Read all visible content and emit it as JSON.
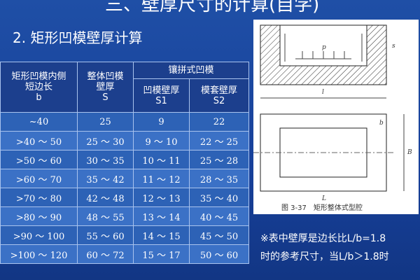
{
  "slide": {
    "title": "三、壁厚尺寸的计算(自学)",
    "heading": "2. 矩形凹模壁厚计算",
    "table": {
      "header": {
        "col1": [
          "矩形凹模内侧",
          "短边长",
          "b"
        ],
        "col2": [
          "整体凹模",
          "壁厚",
          "S"
        ],
        "group": "镶拼式凹模",
        "col3": [
          "凹模壁厚",
          "S1"
        ],
        "col4": [
          "模套壁厚",
          "S2"
        ]
      },
      "rows": [
        [
          "~40",
          "25",
          "9",
          "22"
        ],
        [
          ">40 ～ 50",
          "25 ～ 30",
          "9 ～ 10",
          "22 ～ 25"
        ],
        [
          ">50 ～ 60",
          "30 ～ 35",
          "10 ～ 11",
          "25 ～ 28"
        ],
        [
          ">60 ～ 70",
          "35 ～ 42",
          "11 ～ 12",
          "28 ～ 35"
        ],
        [
          ">70 ～ 80",
          "42 ～ 48",
          "12 ～ 13",
          "35 ～ 40"
        ],
        [
          ">80 ～ 90",
          "48 ～ 55",
          "13 ～ 14",
          "40 ～ 45"
        ],
        [
          ">90 ～ 100",
          "55 ～ 60",
          "14 ～ 15",
          "45 ～ 50"
        ],
        [
          ">100 ～ 120",
          "60 ～ 72",
          "15 ～ 17",
          "50 ～ 60"
        ]
      ]
    },
    "figure": {
      "caption": "图 3-37　矩形整体式型腔",
      "labels": {
        "p": "p",
        "s": "s",
        "l": "l",
        "b": "b",
        "B": "B",
        "L": "L"
      }
    },
    "note": [
      "※表中壁厚是边长比L/b=1.8",
      "时的参考尺寸，当L/b＞1.8时"
    ]
  }
}
